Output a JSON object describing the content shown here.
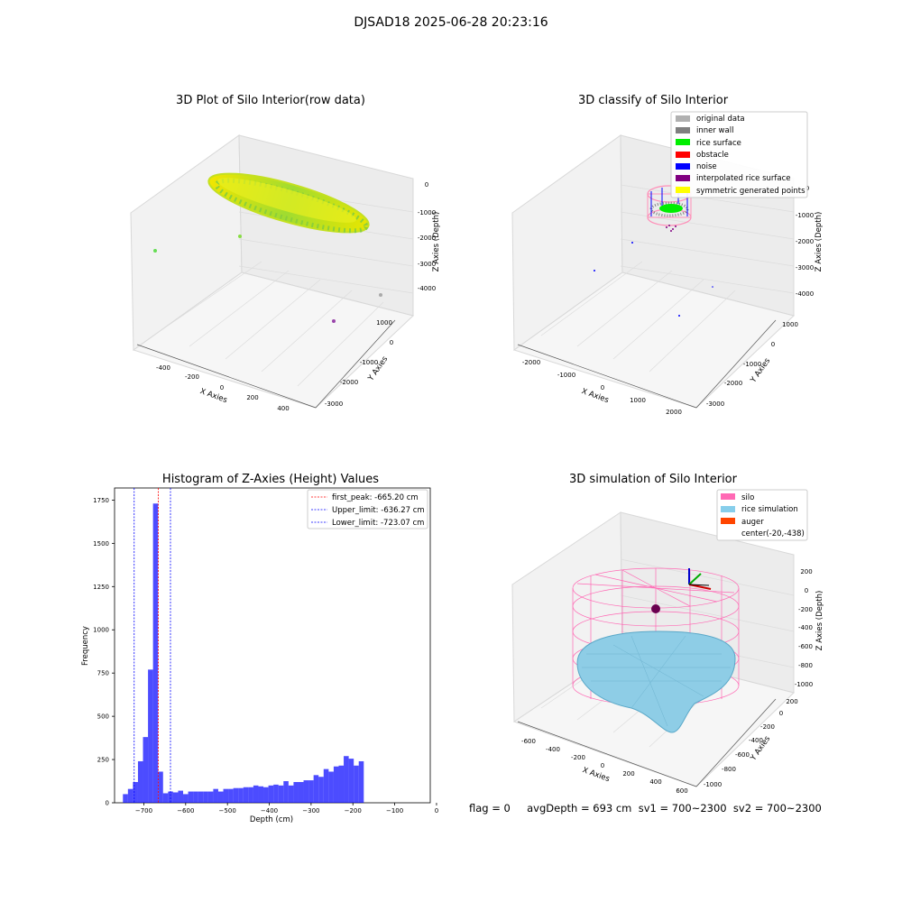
{
  "figure": {
    "suptitle": "DJSAD18 2025-06-28 20:23:16",
    "footer": "flag = 0     avgDepth = 693 cm  sv1 = 700~2300  sv2 = 700~2300"
  },
  "panel_raw": {
    "title": "3D Plot of Silo Interior(row data)",
    "xlabel": "X Axies",
    "ylabel": "Y Axies",
    "zlabel": "Z Axies (Depth)",
    "xticks": [
      "-400",
      "-200",
      "0",
      "200",
      "400"
    ],
    "yticks": [
      "1000",
      "0",
      "-1000",
      "-2000",
      "-3000"
    ],
    "zticks": [
      "0",
      "-1000",
      "-2000",
      "-3000",
      "-4000"
    ]
  },
  "panel_classify": {
    "title": "3D classify of Silo Interior",
    "xlabel": "X Axies",
    "ylabel": "Y Axies",
    "zlabel": "Z Axies (Depth)",
    "xticks": [
      "-2000",
      "-1000",
      "0",
      "1000",
      "2000"
    ],
    "yticks": [
      "1000",
      "0",
      "-1000",
      "-2000",
      "-3000"
    ],
    "zticks": [
      "0",
      "-1000",
      "-2000",
      "-3000",
      "-4000"
    ],
    "legend": [
      {
        "label": "original data",
        "color": "#b0b0b0"
      },
      {
        "label": "inner wall",
        "color": "#808080"
      },
      {
        "label": "rice surface",
        "color": "#00ee00"
      },
      {
        "label": "obstacle",
        "color": "#ff0000"
      },
      {
        "label": "noise",
        "color": "#0000ff"
      },
      {
        "label": "interpolated rice surface",
        "color": "#800080"
      },
      {
        "label": "symmetric generated points",
        "color": "#ffff00"
      }
    ]
  },
  "panel_sim": {
    "title": "3D simulation of Silo Interior",
    "xlabel": "X Axies",
    "ylabel": "Y Axies",
    "zlabel": "Z Axies (Depth)",
    "xticks": [
      "-600",
      "-400",
      "-200",
      "0",
      "200",
      "400",
      "600"
    ],
    "yticks": [
      "200",
      "0",
      "-200",
      "-400",
      "-600",
      "-800",
      "-1000"
    ],
    "zticks": [
      "200",
      "0",
      "-200",
      "-400",
      "-600",
      "-800",
      "-1000"
    ],
    "legend": [
      {
        "label": "silo",
        "color": "#ff69b4"
      },
      {
        "label": "rice simulation",
        "color": "#87ceeb"
      },
      {
        "label": "auger",
        "color": "#ff4500"
      },
      {
        "label": "center(-20,-438)",
        "color": ""
      }
    ]
  },
  "chart_data": [
    {
      "type": "bar",
      "title": "Histogram of Z-Axies (Height) Values",
      "xlabel": "Depth (cm)",
      "ylabel": "Frequency",
      "xlim": [
        -770,
        -15
      ],
      "ylim": [
        0,
        1820
      ],
      "xticks": [
        -700,
        -600,
        -500,
        -400,
        -300,
        -200,
        -100,
        0
      ],
      "yticks": [
        0,
        250,
        500,
        750,
        1000,
        1250,
        1500,
        1750
      ],
      "bin_start": -750,
      "bin_width": 12,
      "values": [
        50,
        80,
        120,
        240,
        380,
        770,
        1730,
        180,
        55,
        65,
        60,
        70,
        50,
        65,
        65,
        65,
        65,
        65,
        80,
        65,
        80,
        80,
        85,
        85,
        90,
        90,
        100,
        95,
        90,
        100,
        105,
        100,
        125,
        100,
        120,
        120,
        130,
        130,
        160,
        150,
        195,
        180,
        210,
        215,
        270,
        255,
        215,
        240
      ],
      "color": "#0000ff",
      "vlines": [
        {
          "label": "first_peak: -665.20 cm",
          "x": -665.2,
          "color": "#ff0000"
        },
        {
          "label": "Upper_limit: -636.27 cm",
          "x": -636.27,
          "color": "#0000ff"
        },
        {
          "label": "Lower_limit: -723.07 cm",
          "x": -723.07,
          "color": "#0000ff"
        }
      ],
      "legend_position": "upper right"
    }
  ]
}
